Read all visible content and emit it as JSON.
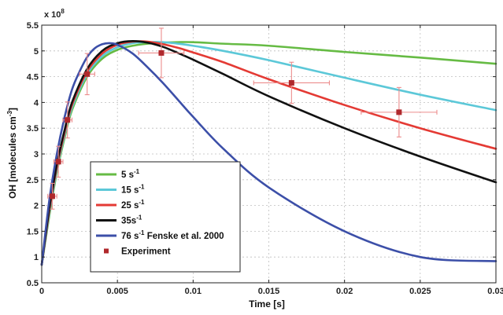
{
  "chart_data": {
    "type": "line",
    "title": "",
    "xlabel": "Time [s]",
    "ylabel_main": "OH [molecules cm",
    "ylabel_sup": "-3",
    "ylabel_end": "]",
    "multiplier_base": "x 10",
    "multiplier_exp": "8",
    "xlim": [
      0,
      0.03
    ],
    "ylim": [
      0.5,
      5.5
    ],
    "xticks": [
      0,
      0.005,
      0.01,
      0.015,
      0.02,
      0.025,
      0.03
    ],
    "xtick_labels": [
      "0",
      "0.005",
      "0.01",
      "0.015",
      "0.02",
      "0.025",
      "0.03"
    ],
    "yticks": [
      0.5,
      1,
      1.5,
      2,
      2.5,
      3,
      3.5,
      4,
      4.5,
      5,
      5.5
    ],
    "ytick_labels": [
      "0.5",
      "1",
      "1.5",
      "2",
      "2.5",
      "3",
      "3.5",
      "4",
      "4.5",
      "5",
      "5.5"
    ],
    "grid": true,
    "legend_position": "bottom-left",
    "series": [
      {
        "name": "5 s",
        "name_sup": "-1",
        "name_suffix": "",
        "color": "#66bb44",
        "x": [
          0,
          0.0005,
          0.001,
          0.0015,
          0.002,
          0.003,
          0.004,
          0.005,
          0.006,
          0.007,
          0.008,
          0.009,
          0.01,
          0.012,
          0.015,
          0.02,
          0.025,
          0.03
        ],
        "y": [
          0.85,
          1.8,
          2.65,
          3.3,
          3.85,
          4.5,
          4.85,
          5.02,
          5.1,
          5.14,
          5.16,
          5.17,
          5.17,
          5.14,
          5.1,
          4.98,
          4.87,
          4.75
        ]
      },
      {
        "name": "15 s",
        "name_sup": "-1",
        "name_suffix": "",
        "color": "#5cc8d8",
        "x": [
          0,
          0.0005,
          0.001,
          0.0015,
          0.002,
          0.003,
          0.004,
          0.005,
          0.006,
          0.007,
          0.008,
          0.009,
          0.01,
          0.012,
          0.015,
          0.02,
          0.025,
          0.03
        ],
        "y": [
          0.85,
          1.85,
          2.7,
          3.35,
          3.9,
          4.55,
          4.9,
          5.07,
          5.15,
          5.17,
          5.17,
          5.14,
          5.1,
          5.0,
          4.82,
          4.48,
          4.15,
          3.85
        ]
      },
      {
        "name": "25 s",
        "name_sup": "-1",
        "name_suffix": "",
        "color": "#e43a34",
        "x": [
          0,
          0.0005,
          0.001,
          0.0015,
          0.002,
          0.003,
          0.004,
          0.005,
          0.006,
          0.007,
          0.008,
          0.009,
          0.01,
          0.012,
          0.015,
          0.02,
          0.025,
          0.03
        ],
        "y": [
          0.85,
          1.9,
          2.75,
          3.4,
          3.95,
          4.6,
          4.95,
          5.12,
          5.18,
          5.18,
          5.13,
          5.06,
          4.97,
          4.78,
          4.45,
          3.95,
          3.5,
          3.1
        ]
      },
      {
        "name": "35s",
        "name_sup": "-1",
        "name_suffix": "",
        "color": "#111111",
        "x": [
          0,
          0.0005,
          0.001,
          0.0015,
          0.002,
          0.003,
          0.004,
          0.005,
          0.006,
          0.007,
          0.008,
          0.009,
          0.01,
          0.012,
          0.015,
          0.02,
          0.025,
          0.03
        ],
        "y": [
          0.85,
          1.95,
          2.8,
          3.45,
          4.0,
          4.65,
          5.0,
          5.15,
          5.19,
          5.16,
          5.08,
          4.96,
          4.83,
          4.55,
          4.12,
          3.5,
          2.95,
          2.45
        ]
      },
      {
        "name": "76 s",
        "name_sup": "-1",
        "name_suffix": " Fenske et al. 2000",
        "color": "#3c4fa8",
        "x": [
          0,
          0.0005,
          0.001,
          0.0015,
          0.002,
          0.0025,
          0.003,
          0.0035,
          0.004,
          0.0045,
          0.005,
          0.006,
          0.007,
          0.008,
          0.009,
          0.01,
          0.012,
          0.015,
          0.02,
          0.025,
          0.03
        ],
        "y": [
          0.85,
          2.1,
          3.0,
          3.7,
          4.25,
          4.6,
          4.88,
          5.05,
          5.13,
          5.15,
          5.12,
          4.95,
          4.68,
          4.38,
          4.05,
          3.72,
          3.1,
          2.35,
          1.5,
          1.0,
          0.92
        ]
      }
    ],
    "experiment": {
      "name": "Experiment",
      "color": "#b0282c",
      "points": [
        {
          "x": 0.0007,
          "y": 2.18,
          "xerr": 0.0003,
          "yerr": 0.25
        },
        {
          "x": 0.0011,
          "y": 2.85,
          "xerr": 0.0003,
          "yerr": 0.3
        },
        {
          "x": 0.0017,
          "y": 3.66,
          "xerr": 0.0003,
          "yerr": 0.35
        },
        {
          "x": 0.003,
          "y": 4.55,
          "xerr": 0.0005,
          "yerr": 0.4
        },
        {
          "x": 0.0079,
          "y": 4.96,
          "xerr": 0.0015,
          "yerr": 0.48
        },
        {
          "x": 0.0165,
          "y": 4.38,
          "xerr": 0.0025,
          "yerr": 0.4
        },
        {
          "x": 0.0236,
          "y": 3.81,
          "xerr": 0.0025,
          "yerr": 0.48
        }
      ]
    }
  }
}
